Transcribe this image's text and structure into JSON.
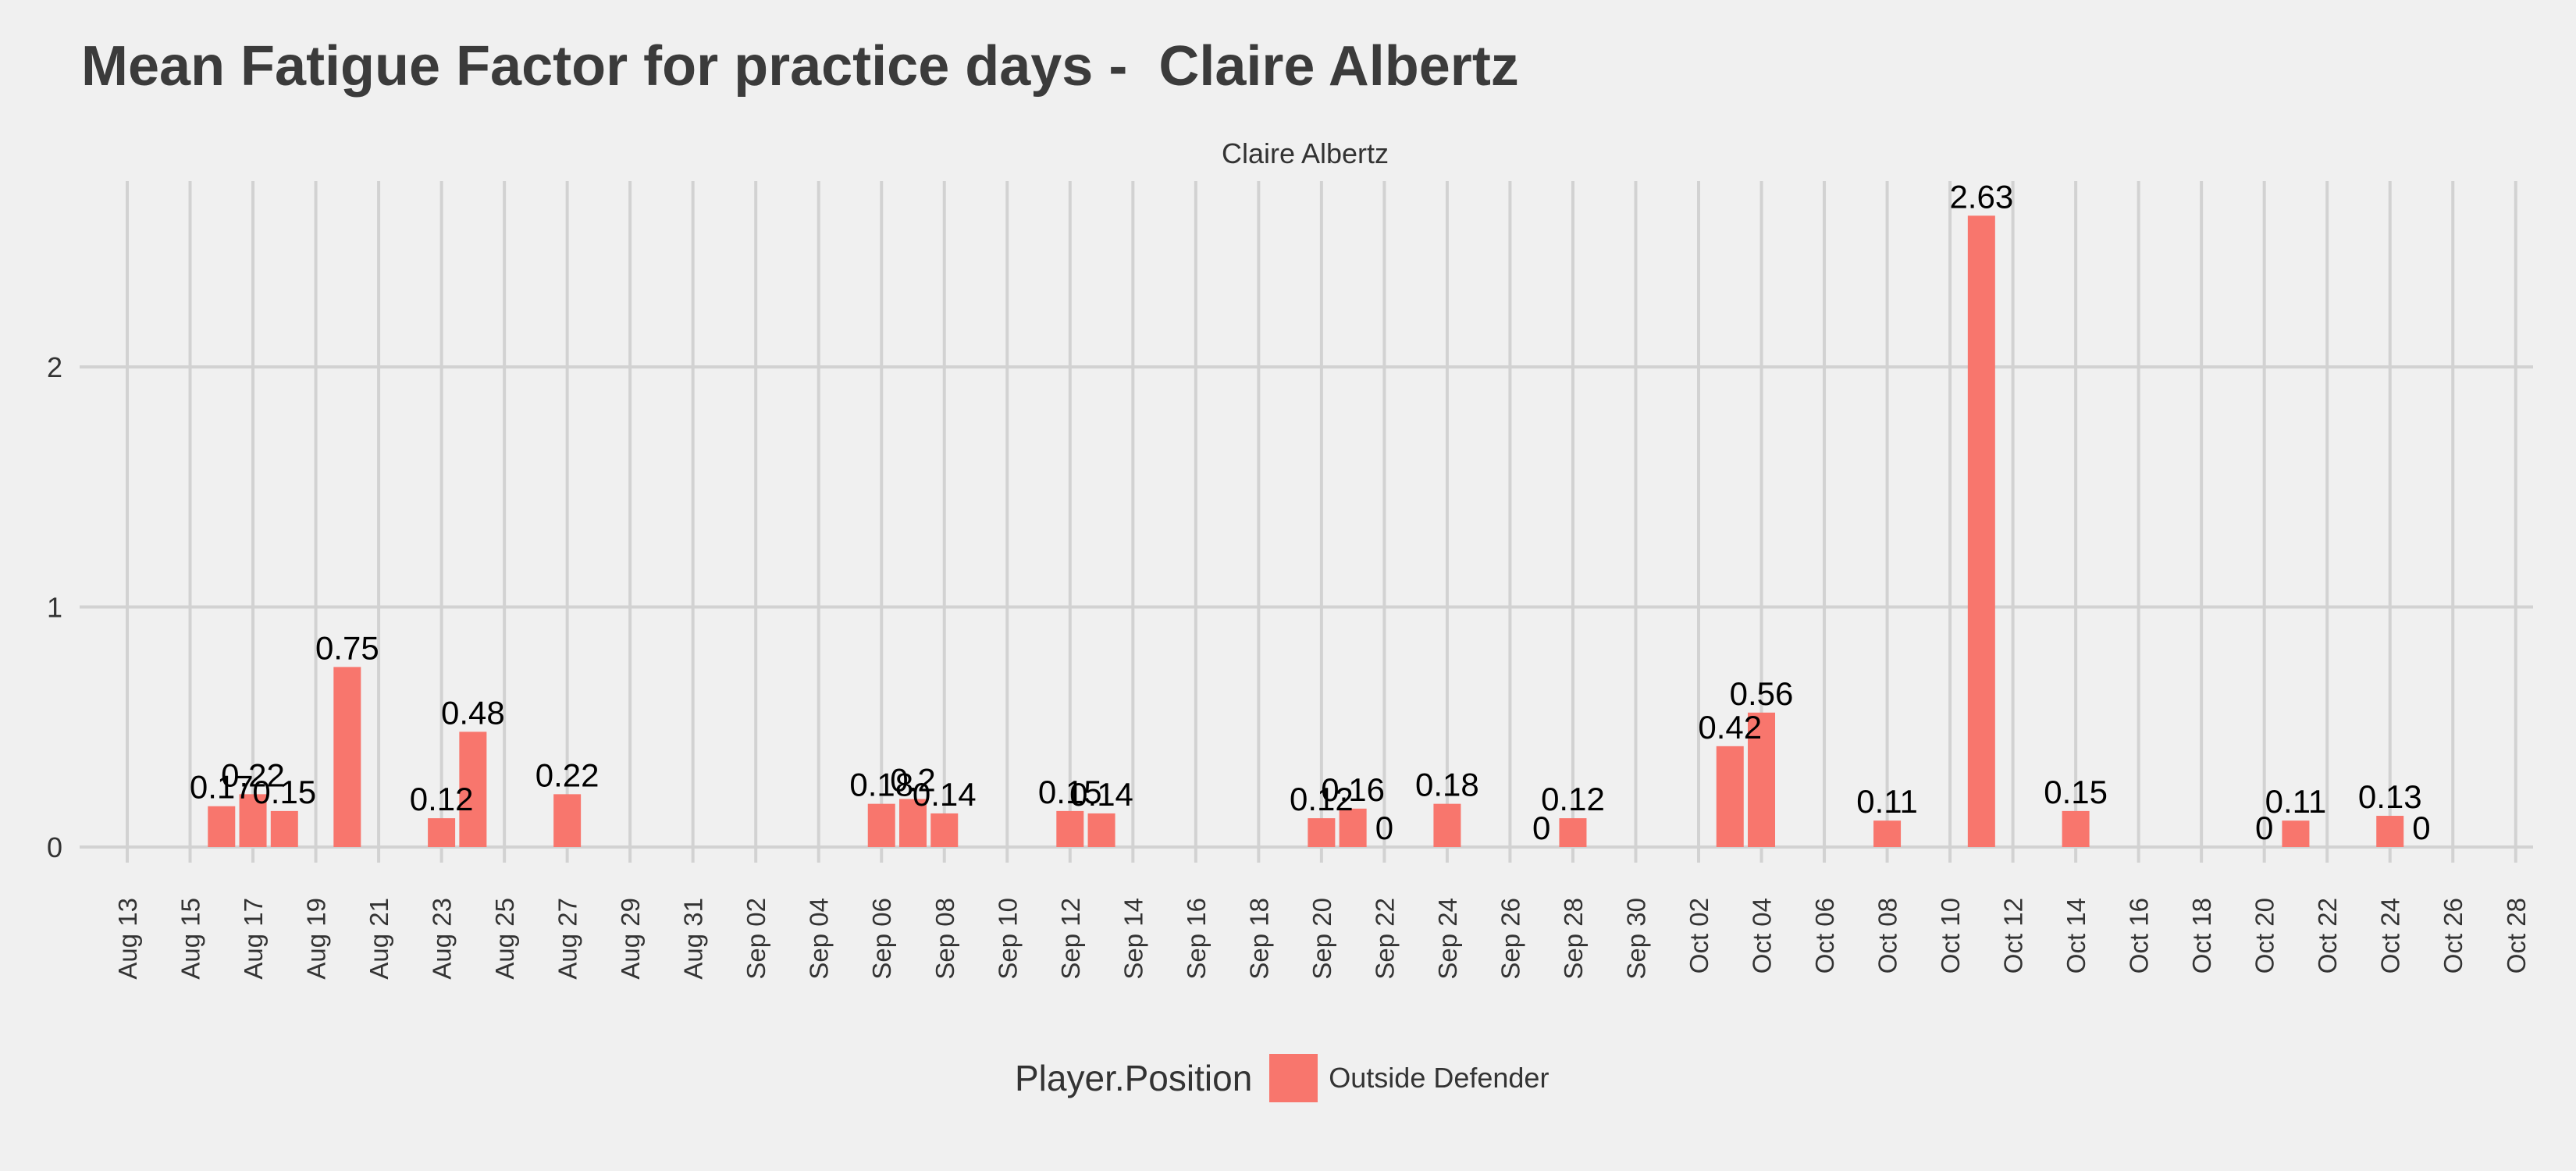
{
  "chart_data": {
    "type": "bar",
    "title": "Mean Fatigue Factor for practice days -  Claire Albertz",
    "facet_label": "Claire Albertz",
    "xlabel": "",
    "ylabel": "",
    "ylim": [
      0,
      2.75
    ],
    "yticks": [
      0,
      1,
      2
    ],
    "xlim": [
      "2023-08-12",
      "2023-10-28"
    ],
    "x_tick_labels": [
      "Aug 13",
      "Aug 15",
      "Aug 17",
      "Aug 19",
      "Aug 21",
      "Aug 23",
      "Aug 25",
      "Aug 27",
      "Aug 29",
      "Aug 31",
      "Sep 02",
      "Sep 04",
      "Sep 06",
      "Sep 08",
      "Sep 10",
      "Sep 12",
      "Sep 14",
      "Sep 16",
      "Sep 18",
      "Sep 20",
      "Sep 22",
      "Sep 24",
      "Sep 26",
      "Sep 28",
      "Sep 30",
      "Oct 02",
      "Oct 04",
      "Oct 06",
      "Oct 08",
      "Oct 10",
      "Oct 12",
      "Oct 14",
      "Oct 16",
      "Oct 18",
      "Oct 20",
      "Oct 22",
      "Oct 24",
      "Oct 26",
      "Oct 28"
    ],
    "grid": true,
    "legend_position": "bottom",
    "legend_title": "Player.Position",
    "series": [
      {
        "name": "Outside Defender",
        "color": "#f8766d",
        "points": [
          {
            "x": "Aug 16",
            "y": 0.17,
            "label": "0.17"
          },
          {
            "x": "Aug 17",
            "y": 0.22,
            "label": "0.22"
          },
          {
            "x": "Aug 18",
            "y": 0.15,
            "label": "0.15"
          },
          {
            "x": "Aug 20",
            "y": 0.75,
            "label": "0.75"
          },
          {
            "x": "Aug 23",
            "y": 0.12,
            "label": "0.12"
          },
          {
            "x": "Aug 24",
            "y": 0.48,
            "label": "0.48"
          },
          {
            "x": "Aug 27",
            "y": 0.22,
            "label": "0.22"
          },
          {
            "x": "Sep 06",
            "y": 0.18,
            "label": "0.18"
          },
          {
            "x": "Sep 07",
            "y": 0.2,
            "label": "0.2"
          },
          {
            "x": "Sep 08",
            "y": 0.14,
            "label": "0.14"
          },
          {
            "x": "Sep 12",
            "y": 0.15,
            "label": "0.15"
          },
          {
            "x": "Sep 13",
            "y": 0.14,
            "label": "0.14"
          },
          {
            "x": "Sep 20",
            "y": 0.12,
            "label": "0.12"
          },
          {
            "x": "Sep 21",
            "y": 0.16,
            "label": "0.16"
          },
          {
            "x": "Sep 22",
            "y": 0,
            "label": "0"
          },
          {
            "x": "Sep 24",
            "y": 0.18,
            "label": "0.18"
          },
          {
            "x": "Sep 27",
            "y": 0,
            "label": "0"
          },
          {
            "x": "Sep 28",
            "y": 0.12,
            "label": "0.12"
          },
          {
            "x": "Oct 03",
            "y": 0.42,
            "label": "0.42"
          },
          {
            "x": "Oct 04",
            "y": 0.56,
            "label": "0.56"
          },
          {
            "x": "Oct 08",
            "y": 0.11,
            "label": "0.11"
          },
          {
            "x": "Oct 11",
            "y": 2.63,
            "label": "2.63"
          },
          {
            "x": "Oct 14",
            "y": 0.15,
            "label": "0.15"
          },
          {
            "x": "Oct 20",
            "y": 0,
            "label": "0"
          },
          {
            "x": "Oct 21",
            "y": 0.11,
            "label": "0.11"
          },
          {
            "x": "Oct 24",
            "y": 0.13,
            "label": "0.13"
          },
          {
            "x": "Oct 25",
            "y": 0,
            "label": "0"
          }
        ]
      }
    ]
  }
}
